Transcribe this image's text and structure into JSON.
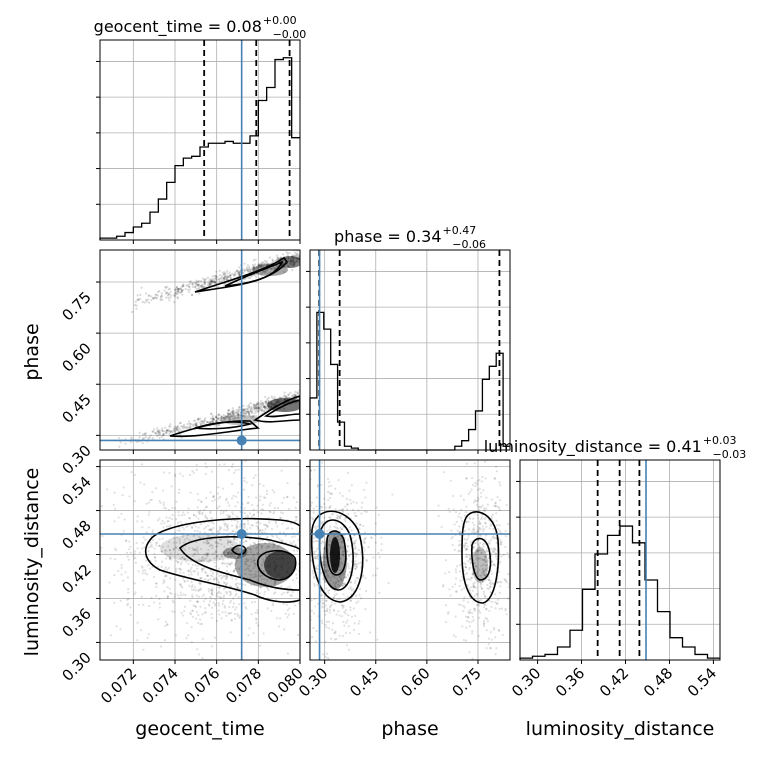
{
  "chart_data": {
    "type": "corner",
    "parameters": [
      "geocent_time",
      "phase",
      "luminosity_distance"
    ],
    "titles": {
      "geocent_time": {
        "label": "geocent_time = 0.08",
        "plus": "+0.00",
        "minus": "−0.00"
      },
      "phase": {
        "label": "phase = 0.34",
        "plus": "+0.47",
        "minus": "−0.06"
      },
      "luminosity_distance": {
        "label": "luminosity_distance = 0.41",
        "plus": "+0.03",
        "minus": "−0.03"
      }
    },
    "truths": {
      "geocent_time": 0.0772,
      "phase": 0.285,
      "luminosity_distance": 0.448
    },
    "ranges": {
      "geocent_time": [
        0.0704,
        0.08
      ],
      "phase": [
        0.257,
        0.844
      ],
      "luminosity_distance": [
        0.276,
        0.549
      ]
    },
    "ticks": {
      "geocent_time": [
        "0.072",
        "0.074",
        "0.076",
        "0.078",
        "0.080"
      ],
      "phase": [
        "0.30",
        "0.45",
        "0.60",
        "0.75"
      ],
      "luminosity_distance": [
        "0.30",
        "0.36",
        "0.42",
        "0.48",
        "0.54"
      ]
    },
    "tick_values": {
      "geocent_time": [
        0.072,
        0.074,
        0.076,
        0.078,
        0.08
      ],
      "phase": [
        0.3,
        0.45,
        0.6,
        0.75
      ],
      "luminosity_distance": [
        0.3,
        0.36,
        0.42,
        0.48,
        0.54
      ]
    },
    "quantiles": {
      "geocent_time": [
        0.0754,
        0.0779,
        0.0795
      ],
      "phase": [
        0.284,
        0.344,
        0.813
      ],
      "luminosity_distance": [
        0.382,
        0.412,
        0.439
      ]
    },
    "histograms": {
      "geocent_time": [
        0.01,
        0.01,
        0.02,
        0.04,
        0.07,
        0.09,
        0.15,
        0.22,
        0.31,
        0.4,
        0.44,
        0.45,
        0.5,
        0.52,
        0.52,
        0.53,
        0.52,
        0.52,
        0.56,
        0.75,
        0.82,
        0.97,
        0.98,
        0.55
      ],
      "phase": [
        0.28,
        0.74,
        0.65,
        0.46,
        0.15,
        0.02,
        0.01,
        0.0,
        0.0,
        0.0,
        0.0,
        0.0,
        0.0,
        0.0,
        0.0,
        0.0,
        0.0,
        0.0,
        0.0,
        0.0,
        0.0,
        0.02,
        0.05,
        0.11,
        0.21,
        0.38,
        0.45,
        0.52,
        0.02
      ],
      "luminosity_distance": [
        0.01,
        0.02,
        0.03,
        0.07,
        0.16,
        0.38,
        0.57,
        0.67,
        0.72,
        0.63,
        0.43,
        0.26,
        0.12,
        0.07,
        0.03,
        0.01
      ]
    }
  }
}
